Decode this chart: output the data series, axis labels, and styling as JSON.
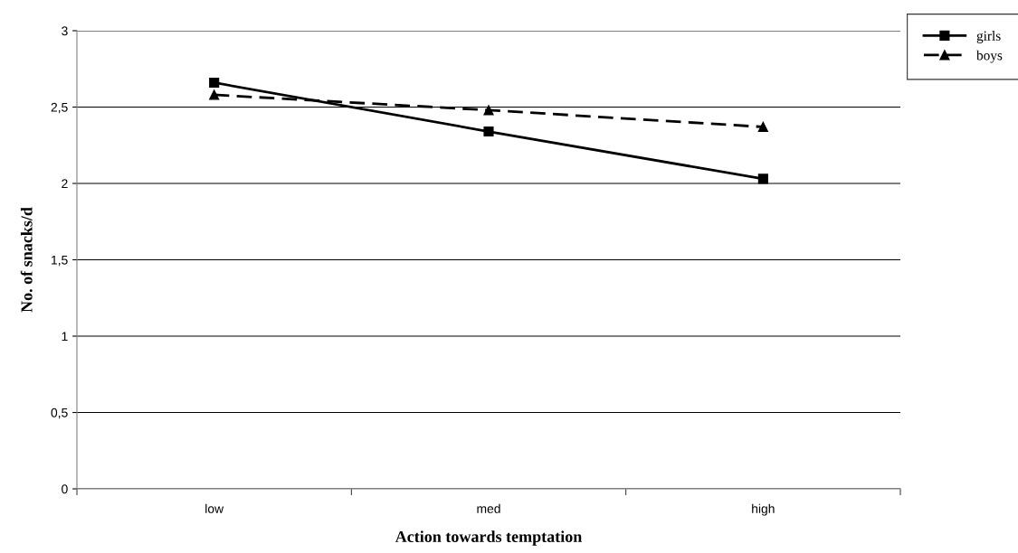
{
  "chart_data": {
    "type": "line",
    "xlabel": "Action towards temptation",
    "ylabel": "No. of snacks/d",
    "categories": [
      "low",
      "med",
      "high"
    ],
    "series": [
      {
        "name": "girls",
        "color": "#000000",
        "values": [
          2.66,
          2.34,
          2.03
        ],
        "marker": "square",
        "line_style": "solid"
      },
      {
        "name": "boys",
        "color": "#000000",
        "values": [
          2.58,
          2.48,
          2.37
        ],
        "marker": "triangle",
        "line_style": "dashed"
      }
    ],
    "ylim": [
      0,
      3
    ],
    "yticks": [
      0,
      {
        "value": 0.5,
        "label": "0,5"
      },
      1,
      {
        "value": 1.5,
        "label": "1,5"
      },
      2,
      {
        "value": 2.5,
        "label": "2,5"
      },
      3
    ],
    "grid": "y",
    "legend": "top right"
  }
}
